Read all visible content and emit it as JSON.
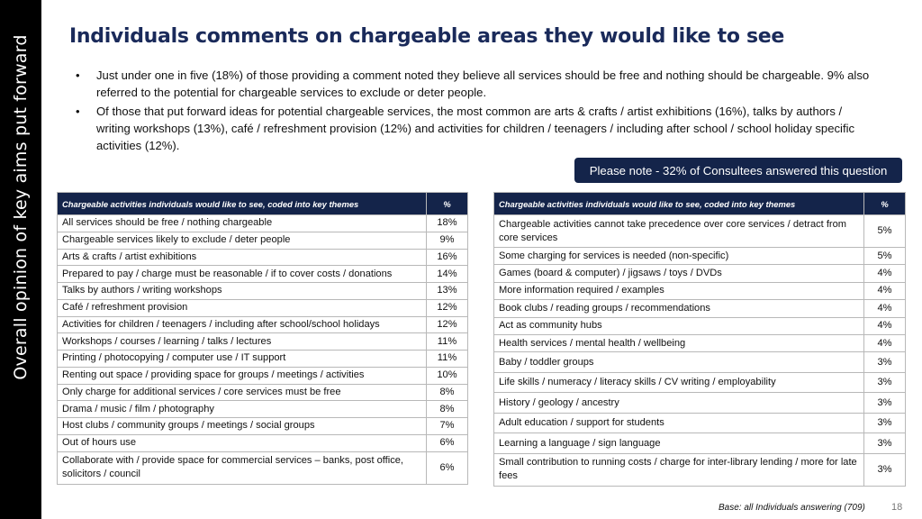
{
  "side_label": "Overall opinion of key aims put forward",
  "title": "Individuals comments on chargeable areas they would like to see",
  "bullets": [
    "Just under one in five (18%) of those providing a comment noted they believe all services should be free and nothing should be chargeable. 9% also referred to the potential for chargeable services to exclude or deter people.",
    "Of those that put forward ideas for potential chargeable services, the most common are arts & crafts / artist exhibitions (16%), talks by authors / writing workshops (13%), café / refreshment provision (12%) and activities for children / teenagers / including after school / school holiday specific activities (12%)."
  ],
  "note": "Please note - 32% of Consultees answered this question",
  "left_table": {
    "header": {
      "label": "Chargeable activities individuals would like to see, coded into key themes",
      "pct": "%"
    },
    "rows": [
      {
        "label": "All services should be free / nothing chargeable",
        "pct": "18%"
      },
      {
        "label": "Chargeable services likely to exclude / deter people",
        "pct": "9%"
      },
      {
        "label": "Arts & crafts / artist exhibitions",
        "pct": "16%"
      },
      {
        "label": "Prepared to pay / charge must be reasonable / if to cover costs / donations",
        "pct": "14%"
      },
      {
        "label": "Talks by authors / writing workshops",
        "pct": "13%"
      },
      {
        "label": "Café / refreshment provision",
        "pct": "12%"
      },
      {
        "label": "Activities for children / teenagers / including after school/school holidays",
        "pct": "12%"
      },
      {
        "label": "Workshops / courses / learning / talks / lectures",
        "pct": "11%"
      },
      {
        "label": "Printing / photocopying / computer use / IT support",
        "pct": "11%"
      },
      {
        "label": "Renting out space / providing space for groups / meetings / activities",
        "pct": "10%"
      },
      {
        "label": "Only charge for additional services / core services must be free",
        "pct": "8%"
      },
      {
        "label": "Drama / music / film / photography",
        "pct": "8%"
      },
      {
        "label": "Host clubs / community groups / meetings / social groups",
        "pct": "7%"
      },
      {
        "label": "Out of hours use",
        "pct": "6%"
      },
      {
        "label": "Collaborate with / provide space for commercial services – banks, post office, solicitors / council",
        "pct": "6%"
      }
    ]
  },
  "right_table": {
    "header": {
      "label": "Chargeable activities individuals would like to see, coded into key themes",
      "pct": "%"
    },
    "rows": [
      {
        "label": "Chargeable activities cannot take precedence over core services / detract from core services",
        "pct": "5%"
      },
      {
        "label": "Some charging for services is needed (non-specific)",
        "pct": "5%"
      },
      {
        "label": "Games (board & computer) / jigsaws / toys / DVDs",
        "pct": "4%"
      },
      {
        "label": "More information required / examples",
        "pct": "4%"
      },
      {
        "label": "Book clubs / reading groups / recommendations",
        "pct": "4%"
      },
      {
        "label": "Act as community hubs",
        "pct": "4%"
      },
      {
        "label": "Health services / mental health / wellbeing",
        "pct": "4%"
      },
      {
        "label": "Baby / toddler groups",
        "pct": "3%"
      },
      {
        "label": "Life skills / numeracy / literacy skills / CV writing / employability",
        "pct": "3%"
      },
      {
        "label": "History / geology / ancestry",
        "pct": "3%"
      },
      {
        "label": "Adult education / support for students",
        "pct": "3%"
      },
      {
        "label": "Learning a language / sign language",
        "pct": "3%"
      },
      {
        "label": "Small contribution to running costs / charge for inter-library lending / more for late fees",
        "pct": "3%"
      }
    ]
  },
  "base": "Base: all Individuals answering (709)",
  "page_number": "18",
  "colors": {
    "header_bg": "#14244a",
    "title": "#1a2a5a",
    "side_bar": "#000000"
  }
}
